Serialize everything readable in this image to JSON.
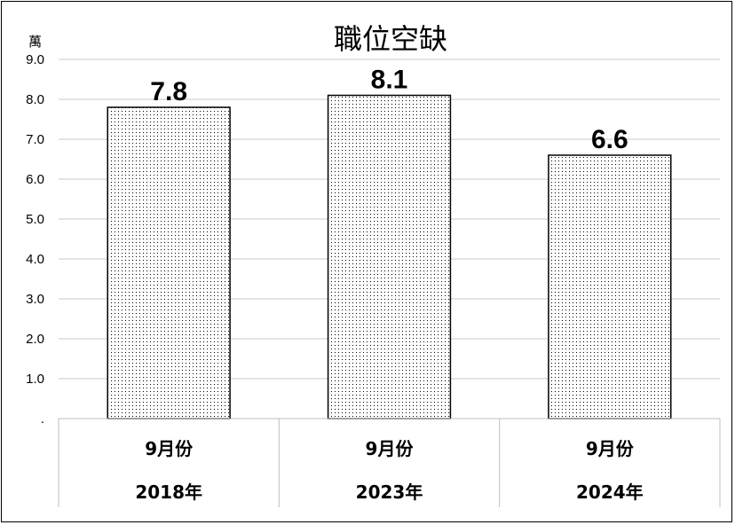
{
  "chart_data": {
    "type": "bar",
    "title": "職位空缺",
    "unit_label": "萬",
    "ylim": [
      0,
      9
    ],
    "ytick_labels": [
      ".",
      "1.0",
      "2.0",
      "3.0",
      "4.0",
      "5.0",
      "6.0",
      "7.0",
      "8.0",
      "9.0"
    ],
    "categories": [
      {
        "month": "9月份",
        "year": "2018年"
      },
      {
        "month": "9月份",
        "year": "2023年"
      },
      {
        "month": "9月份",
        "year": "2024年"
      }
    ],
    "values": [
      7.8,
      8.1,
      6.6
    ],
    "data_labels": [
      "7.8",
      "8.1",
      "6.6"
    ],
    "grid": true,
    "legend": "none"
  }
}
